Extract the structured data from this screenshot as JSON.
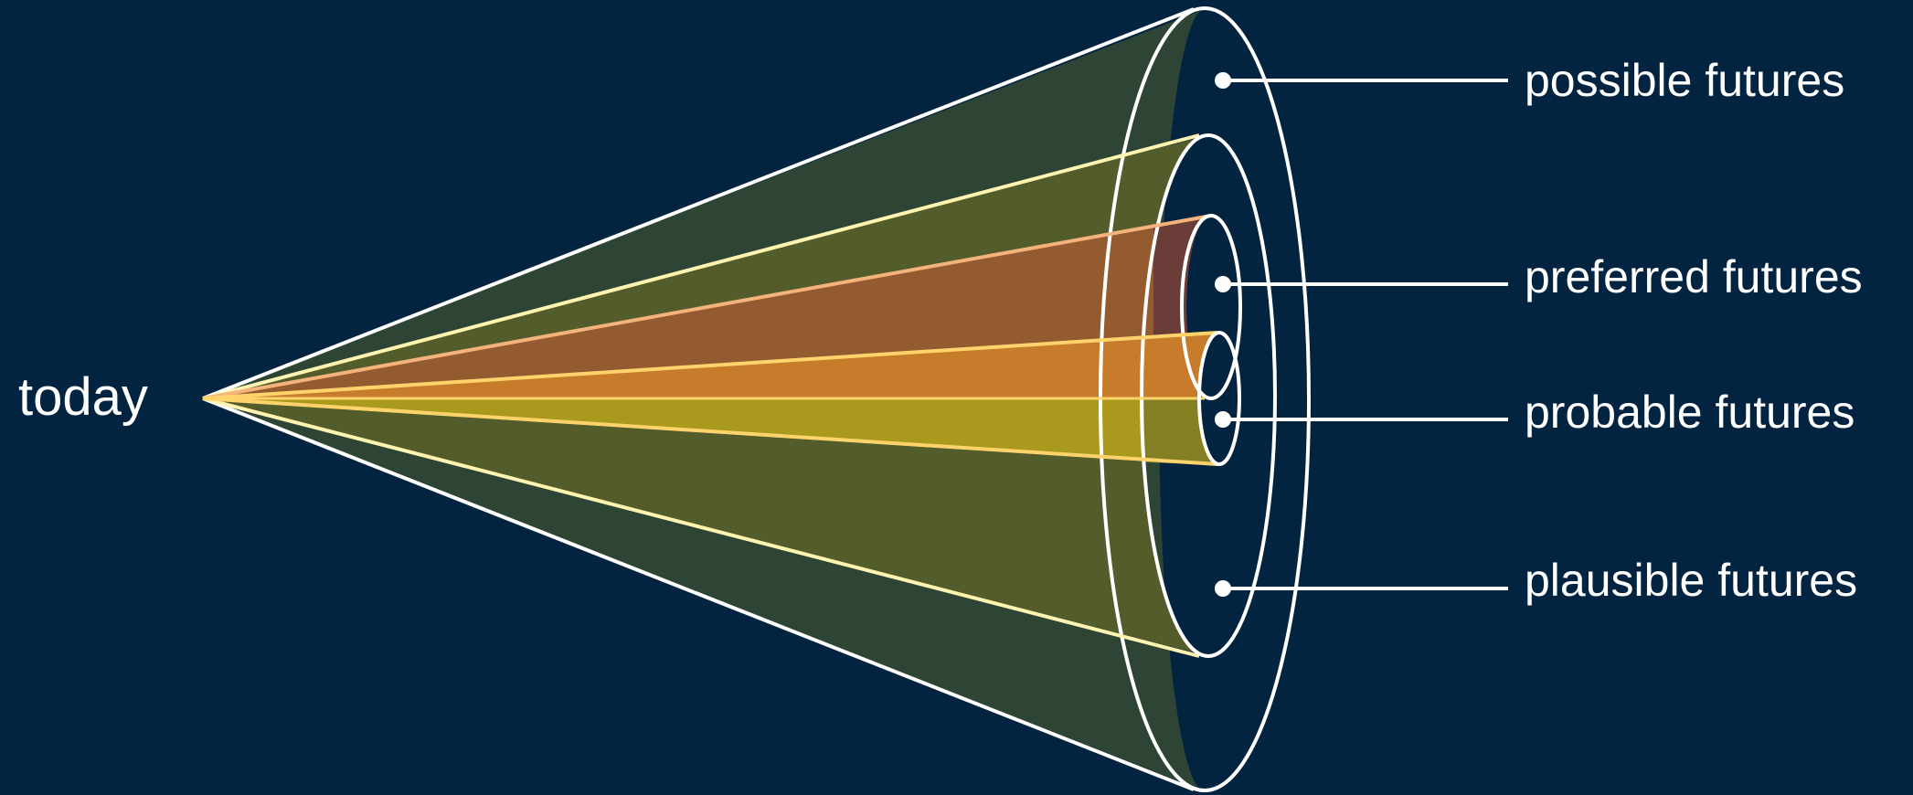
{
  "title": "",
  "origin": {
    "label": "today"
  },
  "cones": [
    {
      "id": "possible",
      "label": "possible futures",
      "fill": "#2e4535",
      "stroke": "#ffffff"
    },
    {
      "id": "plausible",
      "label": "plausible futures",
      "fill": "#535d2b",
      "stroke": "#fff3b0"
    },
    {
      "id": "preferred",
      "label": "preferred futures",
      "fill": "#945a30",
      "stroke": "#f5b27a"
    },
    {
      "id": "probable",
      "label": "probable futures",
      "fill": "#c67c2a",
      "stroke": "#ffd36b"
    }
  ],
  "colors": {
    "background": "#022440",
    "text": "#ffffff",
    "leader": "#ffffff",
    "probable_lower": "#a9991c",
    "probable_lower_end": "#7f7a24",
    "preferred_end": "#6a3d38",
    "plausible_end_band": "#2b4737"
  }
}
